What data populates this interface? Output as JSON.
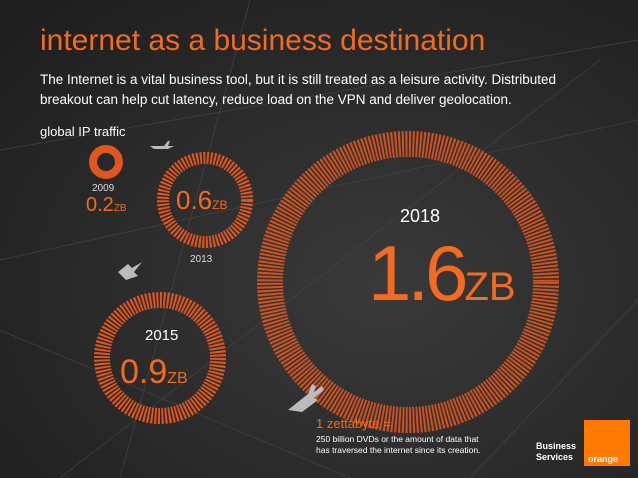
{
  "header": {
    "title": "internet as a business destination",
    "intro_lines": [
      "The Internet is a vital business tool, but it is still treated as a leisure activity. Distributed",
      "breakout can help cut latency, reduce load on the VPN and deliver geolocation."
    ],
    "subtitle": "global IP traffic"
  },
  "rings": [
    {
      "year": "2009",
      "value": 0.2,
      "unit": "ZB"
    },
    {
      "year": "2013",
      "value": 0.6,
      "unit": "ZB"
    },
    {
      "year": "2015",
      "value": 0.9,
      "unit": "ZB"
    },
    {
      "year": "2018",
      "value": 1.6,
      "unit": "ZB"
    }
  ],
  "note": {
    "title": "1 zettabyte =",
    "lines": [
      "250 billion DVDs or the amount of data that",
      "has traversed the internet since its creation."
    ]
  },
  "logo": {
    "lines": [
      "Business",
      "Services"
    ],
    "brand": "orange"
  }
}
